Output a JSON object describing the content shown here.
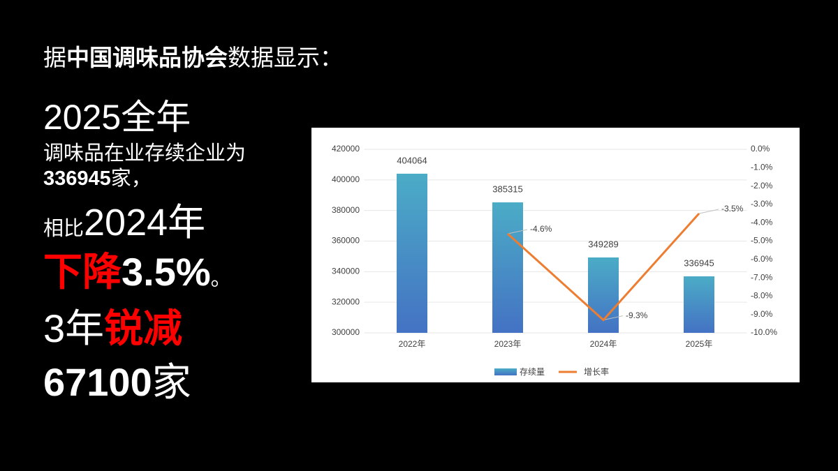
{
  "header": {
    "prefix": "据",
    "emphasis": "中国调味品协会",
    "suffix": "数据显示："
  },
  "summary": {
    "line1": "2025全年",
    "line2": "调味品在业存续企业为",
    "count": "336945",
    "count_suffix": "家，",
    "compare_prefix": "相比",
    "compare_year": "2024年",
    "decline_word": "下降",
    "decline_value": "3.5%",
    "decline_end": "。",
    "period": "3年",
    "drop_word": "锐减",
    "drop_value": "67100",
    "drop_unit": "家"
  },
  "chart_data": {
    "type": "bar",
    "categories": [
      "2022年",
      "2023年",
      "2024年",
      "2025年"
    ],
    "series": [
      {
        "name": "存续量",
        "type": "bar",
        "color": "#4bacc6",
        "values": [
          404064,
          385315,
          349289,
          336945
        ]
      },
      {
        "name": "增长率",
        "type": "line",
        "color": "#ed7d31",
        "axis": "y2",
        "values": [
          null,
          -4.6,
          -9.3,
          -3.5
        ],
        "value_labels": [
          null,
          "-4.6%",
          "-9.3%",
          "-3.5%"
        ]
      }
    ],
    "ylim": [
      300000,
      420000
    ],
    "yticks": [
      300000,
      320000,
      340000,
      360000,
      380000,
      400000,
      420000
    ],
    "y2lim": [
      -10,
      0
    ],
    "y2ticks": [
      {
        "value": 0,
        "label": "0.0%"
      },
      {
        "value": -1,
        "label": "-1.0%"
      },
      {
        "value": -2,
        "label": "-2.0%"
      },
      {
        "value": -3,
        "label": "-3.0%"
      },
      {
        "value": -4,
        "label": "-4.0%"
      },
      {
        "value": -5,
        "label": "-5.0%"
      },
      {
        "value": -6,
        "label": "-6.0%"
      },
      {
        "value": -7,
        "label": "-7.0%"
      },
      {
        "value": -8,
        "label": "-8.0%"
      },
      {
        "value": -9,
        "label": "-9.0%"
      },
      {
        "value": -10,
        "label": "-10.0%"
      }
    ],
    "legend": "bottom"
  }
}
